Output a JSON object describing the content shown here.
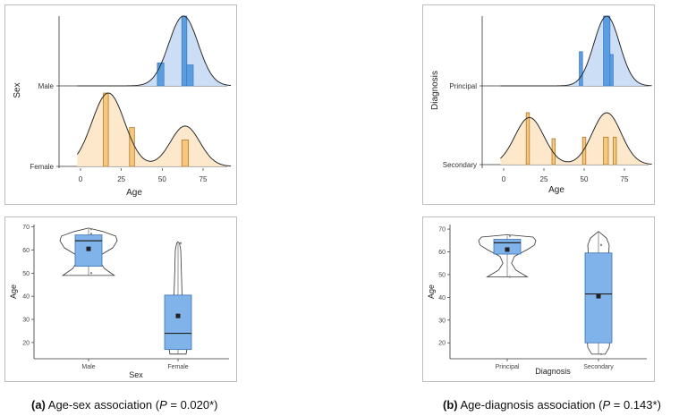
{
  "colors": {
    "blue_fill": "#c9dcf4",
    "blue_bar": "#5b9ee0",
    "blue_box": "#80b3ea",
    "orange_fill": "#fde7c8",
    "orange_bar": "#f7c77c",
    "orange_edge": "#b07a2c",
    "line": "#333333"
  },
  "chart_data": [
    {
      "id": "sex-density",
      "type": "area",
      "xlabel": "Age",
      "ylabel": "Sex",
      "xticks": [
        "0",
        "25",
        "50",
        "75"
      ],
      "xlim": [
        -8,
        96
      ],
      "groups": [
        {
          "name": "Male",
          "color": "blue",
          "density_peak_age": 63,
          "density_sd": 9,
          "histogram": [
            {
              "x": [
                47,
                51
              ],
              "height": 0.33
            },
            {
              "x": [
                62,
                65
              ],
              "height": 1.0
            },
            {
              "x": [
                65,
                69
              ],
              "height": 0.3
            }
          ]
        },
        {
          "name": "Female",
          "color": "orange",
          "density_components": [
            {
              "mean": 17,
              "sd": 10,
              "weight": 1.0
            },
            {
              "mean": 64,
              "sd": 9,
              "weight": 0.55
            }
          ],
          "histogram": [
            {
              "x": [
                14,
                17
              ],
              "height": 1.0
            },
            {
              "x": [
                30,
                33
              ],
              "height": 0.53
            },
            {
              "x": [
                62,
                66
              ],
              "height": 0.36
            }
          ]
        }
      ]
    },
    {
      "id": "diagnosis-density",
      "type": "area",
      "xlabel": "Age",
      "ylabel": "Diagnosis",
      "xticks": [
        "0",
        "25",
        "50",
        "75"
      ],
      "xlim": [
        -8,
        96
      ],
      "groups": [
        {
          "name": "Principal",
          "color": "blue",
          "density_peak_age": 64,
          "density_sd": 8,
          "histogram": [
            {
              "x": [
                47,
                49
              ],
              "height": 0.49
            },
            {
              "x": [
                62,
                66
              ],
              "height": 1.0
            },
            {
              "x": [
                66,
                68
              ],
              "height": 0.45
            }
          ]
        },
        {
          "name": "Secondary",
          "color": "orange",
          "density_components": [
            {
              "mean": 16,
              "sd": 9,
              "weight": 0.78
            },
            {
              "mean": 64,
              "sd": 9,
              "weight": 0.86
            }
          ],
          "histogram": [
            {
              "x": [
                14,
                16
              ],
              "height": 1.0
            },
            {
              "x": [
                30,
                32
              ],
              "height": 0.5
            },
            {
              "x": [
                49,
                51
              ],
              "height": 0.53
            },
            {
              "x": [
                62,
                65
              ],
              "height": 0.53
            },
            {
              "x": [
                68,
                70
              ],
              "height": 0.53
            }
          ]
        }
      ]
    },
    {
      "id": "sex-violin",
      "type": "box",
      "xlabel": "Sex",
      "ylabel": "Age",
      "ylim": [
        13,
        71
      ],
      "yticks": [
        20,
        30,
        40,
        50,
        60,
        70
      ],
      "categories": [
        "Male",
        "Female"
      ],
      "boxes": [
        {
          "name": "Male",
          "q1": 53,
          "median": 64,
          "q3": 66.5,
          "whisker_low": 49,
          "whisker_high": 69,
          "mean": 60.5,
          "points": [
            50,
            69,
            67
          ]
        },
        {
          "name": "Female",
          "q1": 17,
          "median": 24,
          "q3": 40.5,
          "whisker_low": 15,
          "whisker_high": 63,
          "mean": 31.5,
          "points": [
            63
          ]
        }
      ]
    },
    {
      "id": "diagnosis-violin",
      "type": "box",
      "xlabel": "Diagnosis",
      "ylabel": "Age",
      "ylim": [
        13,
        72
      ],
      "yticks": [
        20,
        30,
        40,
        50,
        60,
        70
      ],
      "categories": [
        "Principal",
        "Secondary"
      ],
      "boxes": [
        {
          "name": "Principal",
          "q1": 59,
          "median": 64,
          "q3": 65.5,
          "whisker_low": 49,
          "whisker_high": 67,
          "mean": 61,
          "points": [
            67,
            49
          ]
        },
        {
          "name": "Secondary",
          "q1": 20,
          "median": 41.5,
          "q3": 59.5,
          "whisker_low": 15,
          "whisker_high": 69,
          "mean": 40.5,
          "points": [
            63,
            15
          ]
        }
      ]
    }
  ],
  "captions": {
    "a": {
      "label": "(a)",
      "text": " Age-sex association (",
      "p": "P",
      "value": " = 0.020*)"
    },
    "b": {
      "label": "(b)",
      "text": " Age-diagnosis association (",
      "p": "P",
      "value": " = 0.143*)"
    }
  }
}
